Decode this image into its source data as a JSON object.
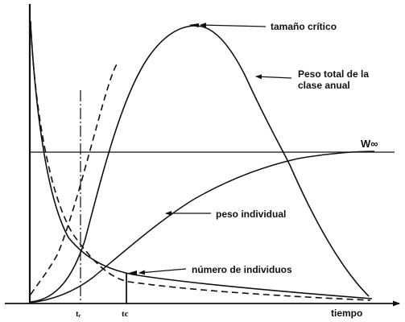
{
  "labels": {
    "critical_size": "tamaño crítico",
    "total_weight_line1": "Peso total de la",
    "total_weight_line2": "clase anual",
    "w_infinity": "W∞",
    "individual_weight": "peso individual",
    "number_of_individuals": "número de individuos",
    "time_axis": "tiempo",
    "tr_tick": "tᵣ",
    "tc_tick": "tc"
  },
  "colors": {
    "ink": "#111111",
    "background": "#ffffff"
  }
}
